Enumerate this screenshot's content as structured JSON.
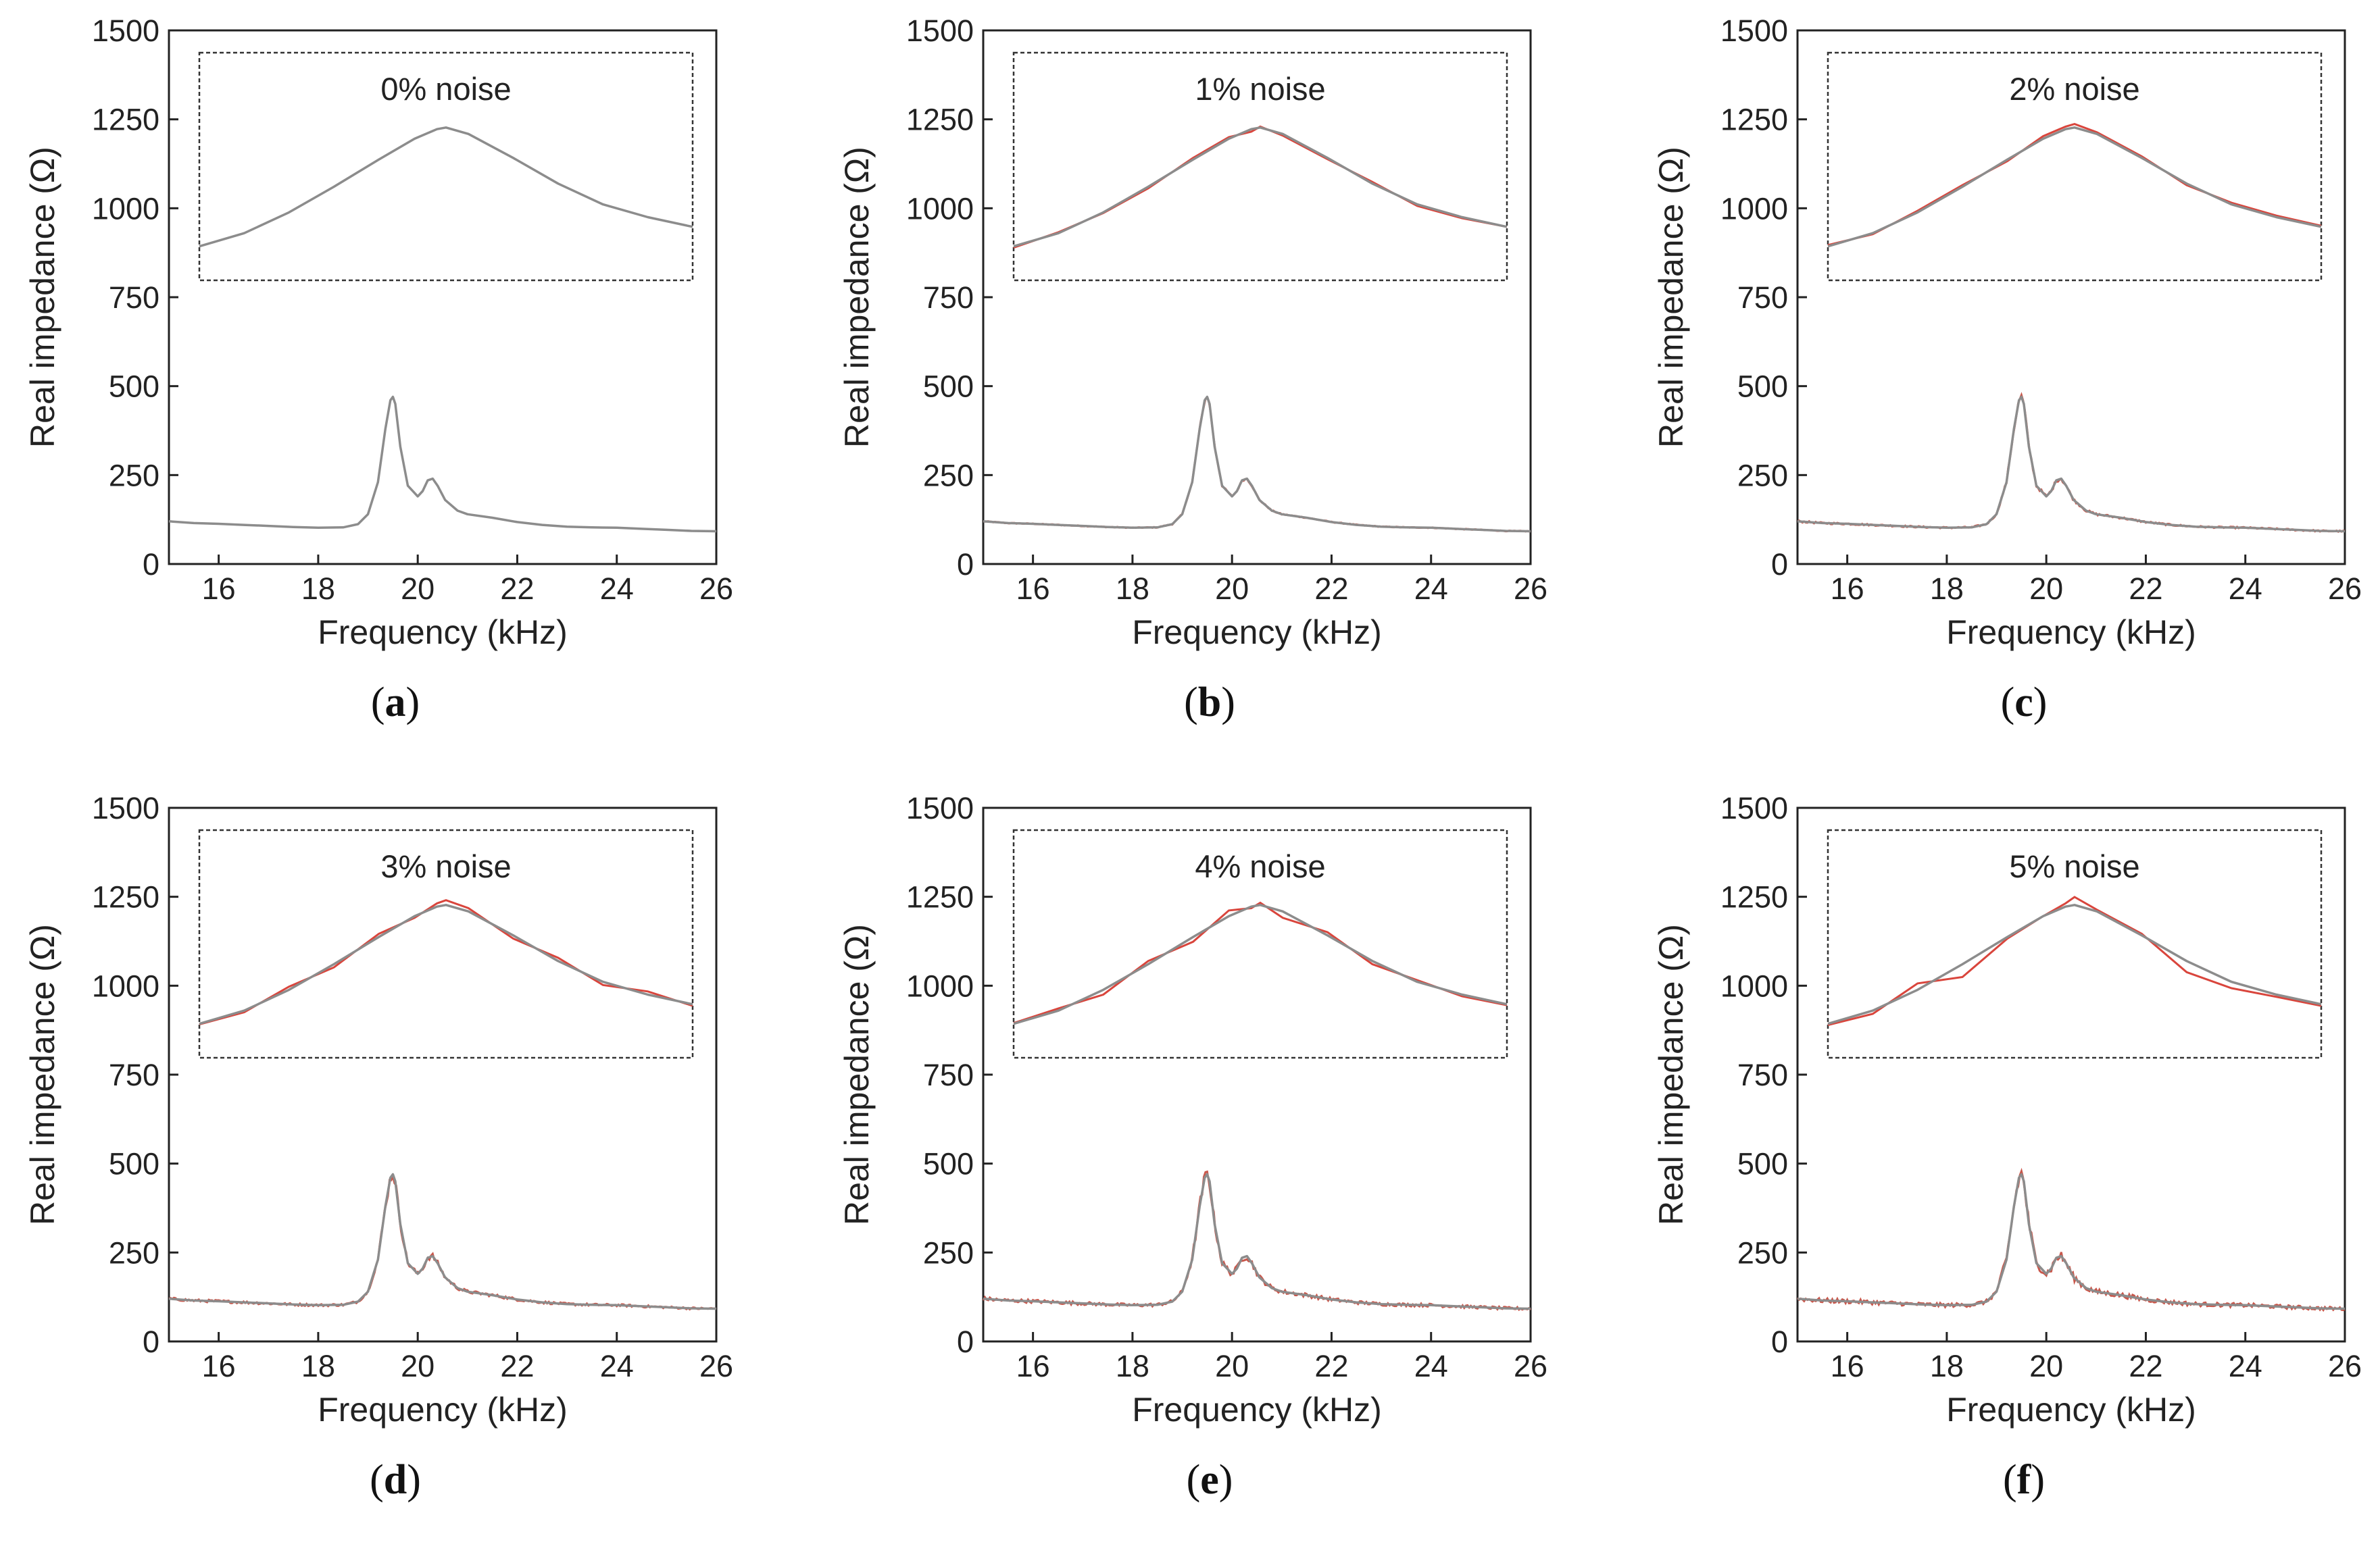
{
  "chart_data": [
    {
      "type": "line",
      "panel_label": "a",
      "inset_title": "0% noise",
      "xlabel": "Frequency (kHz)",
      "ylabel": "Real impedance (Ω)",
      "xlim": [
        15,
        26
      ],
      "ylim": [
        0,
        1500
      ],
      "xticks": [
        "16",
        "18",
        "20",
        "22",
        "24",
        "26"
      ],
      "yticks": [
        "0",
        "250",
        "500",
        "750",
        "1000",
        "1250",
        "1500"
      ],
      "grid": false,
      "noise_pct": 0,
      "series": [
        {
          "name": "reference",
          "color": "#8c8c8c",
          "x": [
            15.0,
            15.5,
            16.0,
            16.5,
            17.0,
            17.5,
            18.0,
            18.5,
            18.8,
            19.0,
            19.2,
            19.35,
            19.45,
            19.5,
            19.55,
            19.65,
            19.8,
            20.0,
            20.1,
            20.2,
            20.3,
            20.4,
            20.55,
            20.8,
            21.0,
            21.5,
            22.0,
            22.5,
            23.0,
            23.5,
            24.0,
            24.5,
            25.0,
            25.5,
            26.0
          ],
          "y": [
            120,
            115,
            113,
            110,
            107,
            104,
            102,
            103,
            112,
            140,
            230,
            380,
            460,
            470,
            450,
            330,
            220,
            190,
            205,
            235,
            240,
            220,
            180,
            150,
            140,
            130,
            118,
            110,
            105,
            103,
            102,
            99,
            96,
            93,
            92
          ]
        },
        {
          "name": "inset_reference",
          "color": "#8c8c8c",
          "x": [
            15,
            16,
            17,
            18,
            19,
            19.8,
            20.3,
            20.5,
            21,
            22,
            23,
            24,
            25,
            26
          ],
          "y": [
            814,
            855,
            920,
            1000,
            1085,
            1150,
            1180,
            1185,
            1165,
            1090,
            1010,
            945,
            905,
            875
          ]
        }
      ]
    },
    {
      "type": "line",
      "panel_label": "b",
      "inset_title": "1% noise",
      "xlabel": "Frequency (kHz)",
      "ylabel": "Real impedance (Ω)",
      "xlim": [
        15,
        26
      ],
      "ylim": [
        0,
        1500
      ],
      "xticks": [
        "16",
        "18",
        "20",
        "22",
        "24",
        "26"
      ],
      "yticks": [
        "0",
        "250",
        "500",
        "750",
        "1000",
        "1250",
        "1500"
      ],
      "grid": false,
      "noise_pct": 1,
      "series": [
        {
          "name": "reference",
          "color": "#8c8c8c",
          "x": [
            15.0,
            15.5,
            16.0,
            16.5,
            17.0,
            17.5,
            18.0,
            18.5,
            18.8,
            19.0,
            19.2,
            19.35,
            19.45,
            19.5,
            19.55,
            19.65,
            19.8,
            20.0,
            20.1,
            20.2,
            20.3,
            20.4,
            20.55,
            20.8,
            21.0,
            21.5,
            22.0,
            22.5,
            23.0,
            23.5,
            24.0,
            24.5,
            25.0,
            25.5,
            26.0
          ],
          "y": [
            120,
            115,
            113,
            110,
            107,
            104,
            102,
            103,
            112,
            140,
            230,
            380,
            460,
            470,
            450,
            330,
            220,
            190,
            205,
            235,
            240,
            220,
            180,
            150,
            140,
            130,
            118,
            110,
            105,
            103,
            102,
            99,
            96,
            93,
            92
          ]
        },
        {
          "name": "inset_reference",
          "color": "#8c8c8c",
          "x": [
            15,
            16,
            17,
            18,
            19,
            19.8,
            20.3,
            20.5,
            21,
            22,
            23,
            24,
            25,
            26
          ],
          "y": [
            814,
            855,
            920,
            1000,
            1085,
            1150,
            1180,
            1185,
            1165,
            1090,
            1010,
            945,
            905,
            875
          ]
        },
        {
          "name": "inset_noisy",
          "color": "#d9453c",
          "x": [
            15,
            16,
            17,
            18,
            19,
            19.8,
            20.3,
            20.5,
            21,
            22,
            23,
            24,
            25,
            26
          ],
          "y": [
            810,
            858,
            918,
            995,
            1090,
            1155,
            1172,
            1188,
            1160,
            1086,
            1015,
            940,
            902,
            875
          ]
        }
      ]
    },
    {
      "type": "line",
      "panel_label": "c",
      "inset_title": "2% noise",
      "xlabel": "Frequency (kHz)",
      "ylabel": "Real impedance (Ω)",
      "xlim": [
        15,
        26
      ],
      "ylim": [
        0,
        1500
      ],
      "xticks": [
        "16",
        "18",
        "20",
        "22",
        "24",
        "26"
      ],
      "yticks": [
        "0",
        "250",
        "500",
        "750",
        "1000",
        "1250",
        "1500"
      ],
      "grid": false,
      "noise_pct": 2,
      "series": [
        {
          "name": "reference",
          "color": "#8c8c8c",
          "x": [
            15.0,
            15.5,
            16.0,
            16.5,
            17.0,
            17.5,
            18.0,
            18.5,
            18.8,
            19.0,
            19.2,
            19.35,
            19.45,
            19.5,
            19.55,
            19.65,
            19.8,
            20.0,
            20.1,
            20.2,
            20.3,
            20.4,
            20.55,
            20.8,
            21.0,
            21.5,
            22.0,
            22.5,
            23.0,
            23.5,
            24.0,
            24.5,
            25.0,
            25.5,
            26.0
          ],
          "y": [
            120,
            115,
            113,
            110,
            107,
            104,
            102,
            103,
            112,
            140,
            230,
            380,
            460,
            470,
            450,
            330,
            220,
            190,
            205,
            235,
            240,
            220,
            180,
            150,
            140,
            130,
            118,
            110,
            105,
            103,
            102,
            99,
            96,
            93,
            92
          ]
        },
        {
          "name": "inset_reference",
          "color": "#8c8c8c",
          "x": [
            15,
            16,
            17,
            18,
            19,
            19.8,
            20.3,
            20.5,
            21,
            22,
            23,
            24,
            25,
            26
          ],
          "y": [
            814,
            855,
            920,
            1000,
            1085,
            1150,
            1180,
            1185,
            1165,
            1090,
            1010,
            945,
            905,
            875
          ]
        },
        {
          "name": "inset_noisy",
          "color": "#d9453c",
          "x": [
            15,
            16,
            17,
            18,
            19,
            19.8,
            20.3,
            20.5,
            21,
            22,
            23,
            24,
            25,
            26
          ],
          "y": [
            818,
            852,
            925,
            1005,
            1080,
            1158,
            1188,
            1196,
            1170,
            1095,
            1005,
            950,
            910,
            878
          ]
        }
      ]
    },
    {
      "type": "line",
      "panel_label": "d",
      "inset_title": "3% noise",
      "xlabel": "Frequency (kHz)",
      "ylabel": "Real impedance (Ω)",
      "xlim": [
        15,
        26
      ],
      "ylim": [
        0,
        1500
      ],
      "xticks": [
        "16",
        "18",
        "20",
        "22",
        "24",
        "26"
      ],
      "yticks": [
        "0",
        "250",
        "500",
        "750",
        "1000",
        "1250",
        "1500"
      ],
      "grid": false,
      "noise_pct": 3,
      "series": [
        {
          "name": "reference",
          "color": "#8c8c8c",
          "x": [
            15.0,
            15.5,
            16.0,
            16.5,
            17.0,
            17.5,
            18.0,
            18.5,
            18.8,
            19.0,
            19.2,
            19.35,
            19.45,
            19.5,
            19.55,
            19.65,
            19.8,
            20.0,
            20.1,
            20.2,
            20.3,
            20.4,
            20.55,
            20.8,
            21.0,
            21.5,
            22.0,
            22.5,
            23.0,
            23.5,
            24.0,
            24.5,
            25.0,
            25.5,
            26.0
          ],
          "y": [
            120,
            115,
            113,
            110,
            107,
            104,
            102,
            103,
            112,
            140,
            230,
            380,
            460,
            470,
            450,
            330,
            220,
            190,
            205,
            235,
            240,
            220,
            180,
            150,
            140,
            130,
            118,
            110,
            105,
            103,
            102,
            99,
            96,
            93,
            92
          ]
        },
        {
          "name": "inset_reference",
          "color": "#8c8c8c",
          "x": [
            15,
            16,
            17,
            18,
            19,
            19.8,
            20.3,
            20.5,
            21,
            22,
            23,
            24,
            25,
            26
          ],
          "y": [
            814,
            855,
            920,
            1000,
            1085,
            1150,
            1180,
            1185,
            1165,
            1090,
            1010,
            945,
            905,
            875
          ]
        },
        {
          "name": "inset_noisy",
          "color": "#d9453c",
          "x": [
            15,
            16,
            17,
            18,
            19,
            19.8,
            20.3,
            20.5,
            21,
            22,
            23,
            24,
            25,
            26
          ],
          "y": [
            812,
            850,
            930,
            990,
            1095,
            1145,
            1190,
            1200,
            1175,
            1080,
            1020,
            935,
            915,
            870
          ]
        }
      ]
    },
    {
      "type": "line",
      "panel_label": "e",
      "inset_title": "4% noise",
      "xlabel": "Frequency (kHz)",
      "ylabel": "Real impedance (Ω)",
      "xlim": [
        15,
        26
      ],
      "ylim": [
        0,
        1500
      ],
      "xticks": [
        "16",
        "18",
        "20",
        "22",
        "24",
        "26"
      ],
      "yticks": [
        "0",
        "250",
        "500",
        "750",
        "1000",
        "1250",
        "1500"
      ],
      "grid": false,
      "noise_pct": 4,
      "series": [
        {
          "name": "reference",
          "color": "#8c8c8c",
          "x": [
            15.0,
            15.5,
            16.0,
            16.5,
            17.0,
            17.5,
            18.0,
            18.5,
            18.8,
            19.0,
            19.2,
            19.35,
            19.45,
            19.5,
            19.55,
            19.65,
            19.8,
            20.0,
            20.1,
            20.2,
            20.3,
            20.4,
            20.55,
            20.8,
            21.0,
            21.5,
            22.0,
            22.5,
            23.0,
            23.5,
            24.0,
            24.5,
            25.0,
            25.5,
            26.0
          ],
          "y": [
            120,
            115,
            113,
            110,
            107,
            104,
            102,
            103,
            112,
            140,
            230,
            380,
            460,
            470,
            450,
            330,
            220,
            190,
            205,
            235,
            240,
            220,
            180,
            150,
            140,
            130,
            118,
            110,
            105,
            103,
            102,
            99,
            96,
            93,
            92
          ]
        },
        {
          "name": "inset_reference",
          "color": "#8c8c8c",
          "x": [
            15,
            16,
            17,
            18,
            19,
            19.8,
            20.3,
            20.5,
            21,
            22,
            23,
            24,
            25,
            26
          ],
          "y": [
            814,
            855,
            920,
            1000,
            1085,
            1150,
            1180,
            1185,
            1165,
            1090,
            1010,
            945,
            905,
            875
          ]
        },
        {
          "name": "inset_noisy",
          "color": "#d9453c",
          "x": [
            15,
            16,
            17,
            18,
            19,
            19.8,
            20.3,
            20.5,
            21,
            22,
            23,
            24,
            25,
            26
          ],
          "y": [
            816,
            862,
            905,
            1010,
            1070,
            1168,
            1175,
            1192,
            1145,
            1100,
            1000,
            950,
            900,
            872
          ]
        }
      ]
    },
    {
      "type": "line",
      "panel_label": "f",
      "inset_title": "5% noise",
      "xlabel": "Frequency (kHz)",
      "ylabel": "Real impedance (Ω)",
      "xlim": [
        15,
        26
      ],
      "ylim": [
        0,
        1500
      ],
      "xticks": [
        "16",
        "18",
        "20",
        "22",
        "24",
        "26"
      ],
      "yticks": [
        "0",
        "250",
        "500",
        "750",
        "1000",
        "1250",
        "1500"
      ],
      "grid": false,
      "noise_pct": 5,
      "series": [
        {
          "name": "reference",
          "color": "#8c8c8c",
          "x": [
            15.0,
            15.5,
            16.0,
            16.5,
            17.0,
            17.5,
            18.0,
            18.5,
            18.8,
            19.0,
            19.2,
            19.35,
            19.45,
            19.5,
            19.55,
            19.65,
            19.8,
            20.0,
            20.1,
            20.2,
            20.3,
            20.4,
            20.55,
            20.8,
            21.0,
            21.5,
            22.0,
            22.5,
            23.0,
            23.5,
            24.0,
            24.5,
            25.0,
            25.5,
            26.0
          ],
          "y": [
            120,
            115,
            113,
            110,
            107,
            104,
            102,
            103,
            112,
            140,
            230,
            380,
            460,
            470,
            450,
            330,
            220,
            190,
            205,
            235,
            240,
            220,
            180,
            150,
            140,
            130,
            118,
            110,
            105,
            103,
            102,
            99,
            96,
            93,
            92
          ]
        },
        {
          "name": "inset_reference",
          "color": "#8c8c8c",
          "x": [
            15,
            16,
            17,
            18,
            19,
            19.8,
            20.3,
            20.5,
            21,
            22,
            23,
            24,
            25,
            26
          ],
          "y": [
            814,
            855,
            920,
            1000,
            1085,
            1150,
            1180,
            1185,
            1165,
            1090,
            1010,
            945,
            905,
            875
          ]
        },
        {
          "name": "inset_noisy",
          "color": "#d9453c",
          "x": [
            15,
            16,
            17,
            18,
            19,
            19.8,
            20.3,
            20.5,
            21,
            22,
            23,
            24,
            25,
            26
          ],
          "y": [
            810,
            845,
            940,
            960,
            1080,
            1150,
            1190,
            1210,
            1170,
            1095,
            975,
            925,
            898,
            870
          ]
        }
      ]
    }
  ]
}
